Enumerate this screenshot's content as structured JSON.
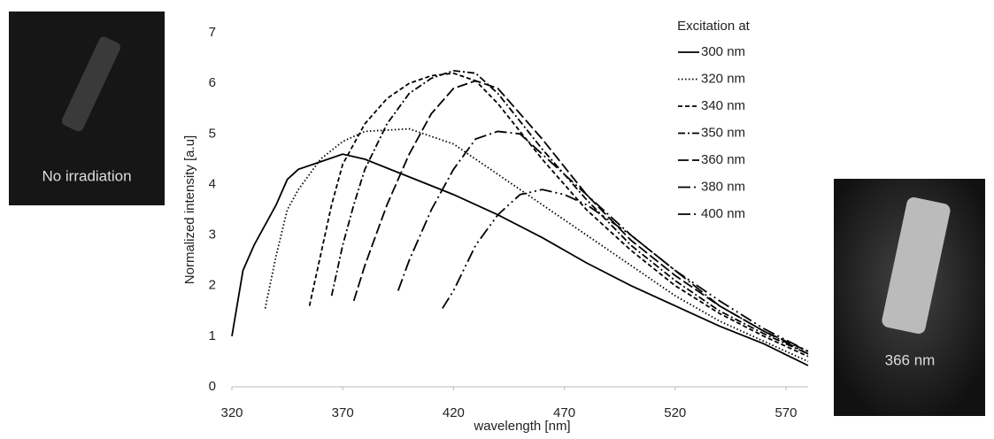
{
  "chart_data": {
    "type": "line",
    "xlabel": "wavelength [nm]",
    "ylabel": "Normalized intensity [a.u]",
    "legend_title": "Excitation at",
    "legend": "upper right",
    "grid": false,
    "xlim": [
      320,
      580
    ],
    "ylim": [
      0,
      7
    ],
    "xticks": [
      320,
      370,
      420,
      470,
      520,
      570
    ],
    "yticks": [
      0,
      1,
      2,
      3,
      4,
      5,
      6,
      7
    ],
    "series": [
      {
        "name": "300 nm",
        "color": "#000000",
        "dash": "none",
        "x": [
          320,
          325,
          330,
          340,
          345,
          350,
          360,
          370,
          380,
          400,
          420,
          440,
          460,
          480,
          500,
          520,
          540,
          560,
          580
        ],
        "values": [
          1.0,
          2.3,
          2.8,
          3.6,
          4.1,
          4.3,
          4.45,
          4.6,
          4.5,
          4.15,
          3.8,
          3.4,
          2.95,
          2.45,
          2.0,
          1.6,
          1.2,
          0.85,
          0.42
        ]
      },
      {
        "name": "320 nm",
        "color": "#000000",
        "dash": "1.5 2.5",
        "x": [
          335,
          340,
          345,
          350,
          360,
          370,
          380,
          400,
          420,
          440,
          460,
          480,
          500,
          520,
          540,
          560,
          580
        ],
        "values": [
          1.55,
          2.6,
          3.5,
          3.9,
          4.5,
          4.85,
          5.05,
          5.1,
          4.8,
          4.2,
          3.6,
          3.0,
          2.4,
          1.8,
          1.3,
          0.9,
          0.5
        ]
      },
      {
        "name": "340 nm",
        "color": "#000000",
        "dash": "5 3",
        "x": [
          355,
          360,
          365,
          370,
          380,
          390,
          400,
          410,
          420,
          430,
          440,
          460,
          480,
          500,
          520,
          540,
          560,
          580
        ],
        "values": [
          1.6,
          2.6,
          3.6,
          4.4,
          5.2,
          5.7,
          6.0,
          6.15,
          6.2,
          6.05,
          5.6,
          4.5,
          3.5,
          2.7,
          2.0,
          1.45,
          1.0,
          0.6
        ]
      },
      {
        "name": "350 nm",
        "color": "#000000",
        "dash": "8 3 2 3",
        "x": [
          365,
          370,
          375,
          380,
          390,
          400,
          410,
          420,
          430,
          440,
          460,
          480,
          500,
          520,
          540,
          560,
          580
        ],
        "values": [
          1.8,
          2.8,
          3.6,
          4.3,
          5.2,
          5.8,
          6.1,
          6.25,
          6.2,
          5.8,
          4.7,
          3.7,
          2.8,
          2.1,
          1.5,
          1.05,
          0.65
        ]
      },
      {
        "name": "360 nm",
        "color": "#000000",
        "dash": "12 4",
        "x": [
          375,
          380,
          390,
          400,
          410,
          420,
          430,
          440,
          460,
          480,
          500,
          520,
          540,
          560,
          580
        ],
        "values": [
          1.7,
          2.4,
          3.6,
          4.6,
          5.4,
          5.9,
          6.05,
          5.9,
          4.9,
          3.8,
          2.9,
          2.2,
          1.6,
          1.1,
          0.7
        ]
      },
      {
        "name": "380 nm",
        "color": "#000000",
        "dash": "14 4 2 4",
        "x": [
          395,
          400,
          410,
          420,
          430,
          440,
          450,
          460,
          480,
          500,
          520,
          540,
          560,
          580
        ],
        "values": [
          1.9,
          2.5,
          3.5,
          4.3,
          4.9,
          5.05,
          5.0,
          4.6,
          3.8,
          3.0,
          2.3,
          1.6,
          1.1,
          0.65
        ]
      },
      {
        "name": "400 nm",
        "color": "#000000",
        "dash": "14 4 2 4 2 4",
        "x": [
          415,
          420,
          430,
          440,
          450,
          460,
          470,
          480,
          500,
          520,
          540,
          560,
          580
        ],
        "values": [
          1.55,
          1.9,
          2.8,
          3.4,
          3.8,
          3.9,
          3.8,
          3.6,
          3.0,
          2.3,
          1.7,
          1.15,
          0.7
        ]
      }
    ]
  },
  "photos": [
    {
      "label": "No irradiation"
    },
    {
      "label": "366 nm"
    }
  ]
}
